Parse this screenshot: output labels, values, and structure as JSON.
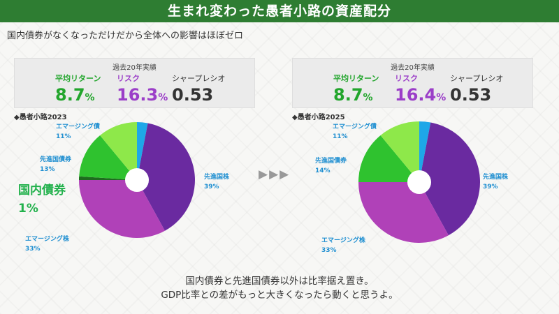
{
  "header": {
    "title": "生まれ変わった愚者小路の資産配分"
  },
  "subtitle": "国内債券がなくなっただけだから全体への影響はほぼゼロ",
  "colors": {
    "green": "#22a52c",
    "purple": "#9b3ec8",
    "dark": "#333333",
    "light_blue": "#29a8e0",
    "slice_emerging_bond": "#8ee84a",
    "slice_developed_bond": "#2fc22f",
    "slice_domestic_bond": "#1e6b1e",
    "slice_emerging_stock": "#b041b8",
    "slice_developed_stock": "#6a2aa0",
    "slice_domestic_stock": "#1ea7e8"
  },
  "stats_left": {
    "caption": "過去20年実績",
    "return_label": "平均リターン",
    "return_value": "8.7",
    "return_unit": "%",
    "risk_label": "リスク",
    "risk_value": "16.3",
    "risk_unit": "%",
    "sharpe_label": "シャープレシオ",
    "sharpe_value": "0.53"
  },
  "stats_right": {
    "caption": "過去20年実績",
    "return_label": "平均リターン",
    "return_value": "8.7",
    "return_unit": "%",
    "risk_label": "リスク",
    "risk_value": "16.4",
    "risk_unit": "%",
    "sharpe_label": "シャープレシオ",
    "sharpe_value": "0.53"
  },
  "callout": {
    "line1": "国内債券",
    "line2": "1%"
  },
  "arrows": "▶▶▶",
  "footer": {
    "line1": "国内債券と先進国債券以外は比率据え置き。",
    "line2": "GDP比率との差がもっと大きくなったら動くと思うよ。"
  },
  "chart_data": [
    {
      "type": "pie",
      "title": "◆愚者小路2023",
      "slices": [
        {
          "name": "",
          "value": 3,
          "color": "#1ea7e8",
          "label": "",
          "pct": ""
        },
        {
          "name": "先進国株",
          "value": 39,
          "color": "#6a2aa0",
          "label": "先進国株",
          "pct": "39%"
        },
        {
          "name": "エマージング株",
          "value": 33,
          "color": "#b041b8",
          "label": "エマージング株",
          "pct": "33%"
        },
        {
          "name": "国内債券",
          "value": 1,
          "color": "#1e6b1e",
          "label": "",
          "pct": ""
        },
        {
          "name": "先進国債券",
          "value": 13,
          "color": "#2fc22f",
          "label": "先進国債券",
          "pct": "13%"
        },
        {
          "name": "エマージング債",
          "value": 11,
          "color": "#8ee84a",
          "label": "エマージング債",
          "pct": "11%"
        }
      ]
    },
    {
      "type": "pie",
      "title": "◆愚者小路2025",
      "slices": [
        {
          "name": "",
          "value": 3,
          "color": "#1ea7e8",
          "label": "",
          "pct": ""
        },
        {
          "name": "先進国株",
          "value": 39,
          "color": "#6a2aa0",
          "label": "先進国株",
          "pct": "39%"
        },
        {
          "name": "エマージング株",
          "value": 33,
          "color": "#b041b8",
          "label": "エマージング株",
          "pct": "33%"
        },
        {
          "name": "先進国債券",
          "value": 14,
          "color": "#2fc22f",
          "label": "先進国債券",
          "pct": "14%"
        },
        {
          "name": "エマージング債",
          "value": 11,
          "color": "#8ee84a",
          "label": "エマージング債",
          "pct": "11%"
        }
      ]
    }
  ]
}
